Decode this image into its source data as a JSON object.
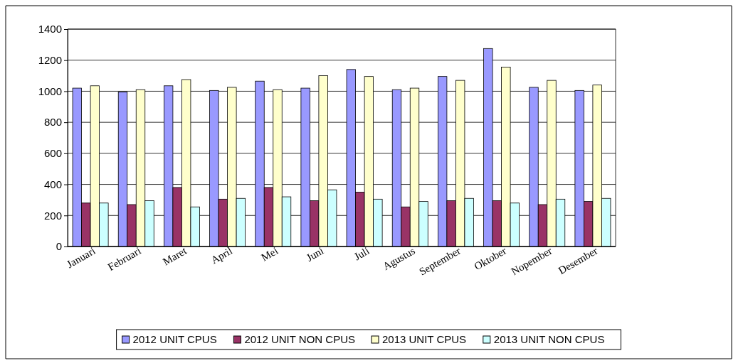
{
  "chart_data": {
    "type": "bar",
    "categories": [
      "Januari",
      "Februari",
      "Maret",
      "April",
      "Mei",
      "Juni",
      "Juli",
      "Agustus",
      "September",
      "Oktober",
      "Nopember",
      "Desember"
    ],
    "series": [
      {
        "name": "2012 UNIT CPUS",
        "color": "#9999ff",
        "values": [
          1020,
          995,
          1035,
          1005,
          1065,
          1020,
          1140,
          1010,
          1095,
          1275,
          1025,
          1005
        ]
      },
      {
        "name": "2012 UNIT NON CPUS",
        "color": "#993366",
        "values": [
          280,
          270,
          380,
          305,
          380,
          295,
          350,
          255,
          295,
          295,
          270,
          290
        ]
      },
      {
        "name": "2013 UNIT CPUS",
        "color": "#ffffcc",
        "values": [
          1035,
          1010,
          1075,
          1025,
          1010,
          1100,
          1095,
          1020,
          1070,
          1155,
          1070,
          1040
        ]
      },
      {
        "name": "2013 UNIT NON CPUS",
        "color": "#ccffff",
        "values": [
          280,
          295,
          255,
          310,
          320,
          365,
          305,
          290,
          310,
          280,
          305,
          310
        ]
      }
    ],
    "ylim": [
      0,
      1400
    ],
    "yticks": [
      0,
      200,
      400,
      600,
      800,
      1000,
      1200,
      1400
    ],
    "grid": "y",
    "legend": "bottom"
  }
}
